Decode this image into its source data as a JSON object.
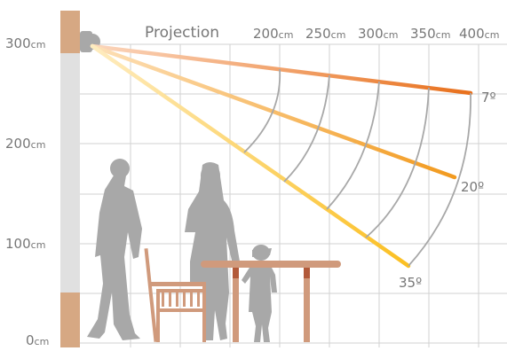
{
  "title": "Projection",
  "height_labels": [
    {
      "num": "300",
      "unit": "cm",
      "value": 300
    },
    {
      "num": "200",
      "unit": "cm",
      "value": 200
    },
    {
      "num": "100",
      "unit": "cm",
      "value": 100
    },
    {
      "num": "0",
      "unit": "cm",
      "value": 0
    }
  ],
  "projection_labels": [
    {
      "num": "200",
      "unit": "cm",
      "value": 200
    },
    {
      "num": "250",
      "unit": "cm",
      "value": 250
    },
    {
      "num": "300",
      "unit": "cm",
      "value": 300
    },
    {
      "num": "350",
      "unit": "cm",
      "value": 350
    },
    {
      "num": "400",
      "unit": "cm",
      "value": 400
    }
  ],
  "beam_angles": [
    {
      "label": "7º",
      "degrees": 7
    },
    {
      "label": "20º",
      "degrees": 20
    },
    {
      "label": "35º",
      "degrees": 35
    }
  ],
  "colors": {
    "wall_wood": "#d6a883",
    "wall_white": "#e0e0e0",
    "grid": "#d2d2d2",
    "arc": "#a8a8a8",
    "figure": "#a8a8a8",
    "beam_7": "#e8701c",
    "beam_20": "#f29a1e",
    "beam_35": "#fbbf21",
    "beam_pale": "#fde3c2",
    "furniture": "#d09a7c"
  }
}
